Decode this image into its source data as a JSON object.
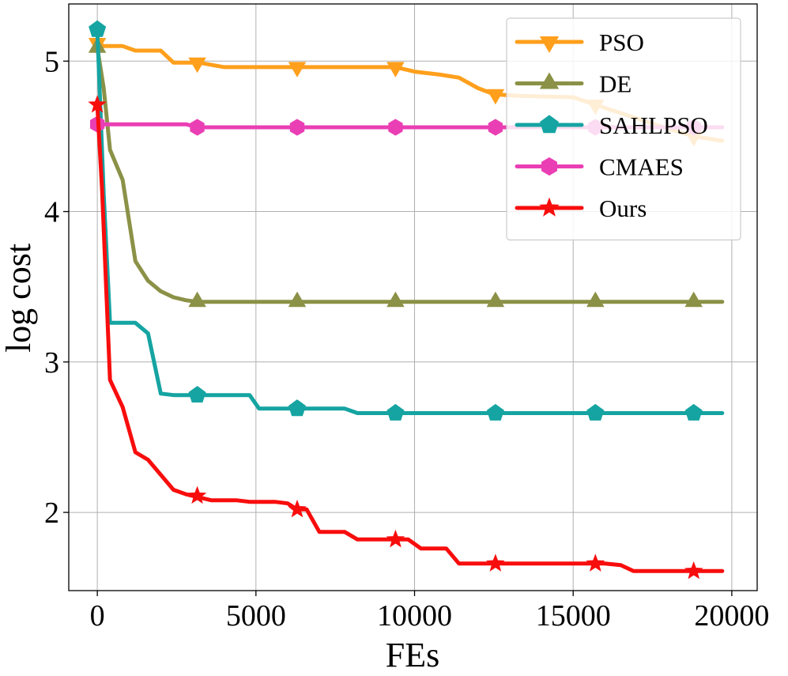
{
  "chart_data": {
    "type": "line",
    "xlabel": "FEs",
    "ylabel": "log cost",
    "xlim": [
      -900,
      20800
    ],
    "ylim": [
      1.48,
      5.38
    ],
    "xticks": [
      0,
      5000,
      10000,
      15000,
      20000
    ],
    "xtick_labels": [
      "0",
      "5000",
      "10000",
      "15000",
      "20000"
    ],
    "yticks": [
      2,
      3,
      4,
      5
    ],
    "ytick_labels": [
      "2",
      "3",
      "4",
      "5"
    ],
    "grid": true,
    "legend_position": "top-right",
    "series": [
      {
        "name": "PSO",
        "color": "#ff9f1c",
        "marker": "triangle-down",
        "points": [
          [
            0,
            5.12
          ],
          [
            200,
            5.1
          ],
          [
            800,
            5.1
          ],
          [
            1200,
            5.07
          ],
          [
            2000,
            5.07
          ],
          [
            2400,
            4.99
          ],
          [
            3200,
            4.99
          ],
          [
            4000,
            4.96
          ],
          [
            6300,
            4.96
          ],
          [
            9400,
            4.96
          ],
          [
            10000,
            4.93
          ],
          [
            10800,
            4.91
          ],
          [
            11400,
            4.89
          ],
          [
            12000,
            4.82
          ],
          [
            12500,
            4.78
          ],
          [
            13200,
            4.77
          ],
          [
            15000,
            4.76
          ],
          [
            15700,
            4.71
          ],
          [
            17000,
            4.62
          ],
          [
            18000,
            4.55
          ],
          [
            18800,
            4.5
          ],
          [
            19700,
            4.47
          ]
        ],
        "marker_points": [
          [
            0,
            5.12
          ],
          [
            3150,
            4.99
          ],
          [
            6300,
            4.96
          ],
          [
            9400,
            4.96
          ],
          [
            12550,
            4.78
          ],
          [
            15700,
            4.71
          ],
          [
            18800,
            4.5
          ]
        ]
      },
      {
        "name": "DE",
        "color": "#8b9146",
        "marker": "triangle-up",
        "points": [
          [
            0,
            5.09
          ],
          [
            200,
            4.82
          ],
          [
            400,
            4.41
          ],
          [
            800,
            4.21
          ],
          [
            1200,
            3.67
          ],
          [
            1600,
            3.54
          ],
          [
            2000,
            3.47
          ],
          [
            2400,
            3.43
          ],
          [
            2800,
            3.41
          ],
          [
            3150,
            3.4
          ],
          [
            19700,
            3.4
          ]
        ],
        "marker_points": [
          [
            0,
            5.09
          ],
          [
            3150,
            3.4
          ],
          [
            6300,
            3.4
          ],
          [
            9400,
            3.4
          ],
          [
            12550,
            3.4
          ],
          [
            15700,
            3.4
          ],
          [
            18800,
            3.4
          ]
        ]
      },
      {
        "name": "SAHLPSO",
        "color": "#15a4a2",
        "marker": "pentagon",
        "points": [
          [
            0,
            5.21
          ],
          [
            200,
            4.12
          ],
          [
            400,
            3.26
          ],
          [
            1200,
            3.26
          ],
          [
            1600,
            3.19
          ],
          [
            2000,
            2.79
          ],
          [
            2400,
            2.78
          ],
          [
            4800,
            2.78
          ],
          [
            5100,
            2.69
          ],
          [
            7800,
            2.69
          ],
          [
            8200,
            2.66
          ],
          [
            19700,
            2.66
          ]
        ],
        "marker_points": [
          [
            0,
            5.21
          ],
          [
            3150,
            2.78
          ],
          [
            6300,
            2.69
          ],
          [
            9400,
            2.66
          ],
          [
            12550,
            2.66
          ],
          [
            15700,
            2.66
          ],
          [
            18800,
            2.66
          ]
        ]
      },
      {
        "name": "CMAES",
        "color": "#ea3fb4",
        "marker": "hexagon",
        "points": [
          [
            0,
            4.58
          ],
          [
            2800,
            4.58
          ],
          [
            3150,
            4.56
          ],
          [
            19700,
            4.56
          ]
        ],
        "marker_points": [
          [
            0,
            4.58
          ],
          [
            3150,
            4.56
          ],
          [
            6300,
            4.56
          ],
          [
            9400,
            4.56
          ],
          [
            12550,
            4.56
          ],
          [
            15700,
            4.56
          ],
          [
            18800,
            4.56
          ]
        ]
      },
      {
        "name": "Ours",
        "color": "#f80d0d",
        "marker": "star",
        "points": [
          [
            0,
            4.71
          ],
          [
            150,
            4.15
          ],
          [
            400,
            2.88
          ],
          [
            800,
            2.7
          ],
          [
            1200,
            2.4
          ],
          [
            1600,
            2.35
          ],
          [
            2000,
            2.25
          ],
          [
            2400,
            2.15
          ],
          [
            2800,
            2.12
          ],
          [
            3600,
            2.08
          ],
          [
            4400,
            2.08
          ],
          [
            4800,
            2.07
          ],
          [
            5600,
            2.07
          ],
          [
            6000,
            2.06
          ],
          [
            6300,
            2.02
          ],
          [
            6600,
            2.02
          ],
          [
            7000,
            1.87
          ],
          [
            7800,
            1.87
          ],
          [
            8200,
            1.82
          ],
          [
            9400,
            1.82
          ],
          [
            9800,
            1.82
          ],
          [
            10200,
            1.76
          ],
          [
            11000,
            1.76
          ],
          [
            11400,
            1.66
          ],
          [
            12550,
            1.66
          ],
          [
            15700,
            1.66
          ],
          [
            16000,
            1.66
          ],
          [
            16500,
            1.65
          ],
          [
            16900,
            1.61
          ],
          [
            19700,
            1.61
          ]
        ],
        "marker_points": [
          [
            0,
            4.71
          ],
          [
            3150,
            2.11
          ],
          [
            6300,
            2.02
          ],
          [
            9400,
            1.82
          ],
          [
            12550,
            1.66
          ],
          [
            15700,
            1.66
          ],
          [
            18800,
            1.61
          ]
        ]
      }
    ]
  }
}
